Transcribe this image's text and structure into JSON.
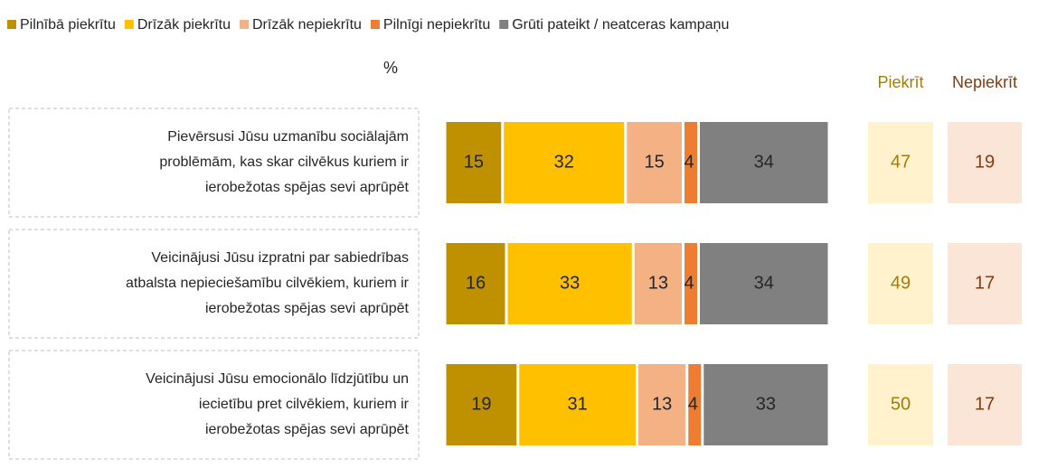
{
  "chart_data": {
    "type": "stacked-bar-horizontal",
    "unit_label": "%",
    "categories": [
      [
        "Pievērsusi Jūsu uzmanību sociālajām",
        "problēmām, kas skar cilvēkus kuriem ir",
        "ierobežotas spējas sevi aprūpēt"
      ],
      [
        "Veicinājusi Jūsu izpratni par sabiedrības",
        "atbalsta nepieciešamību cilvēkiem, kuriem ir",
        "ierobežotas spējas sevi aprūpēt"
      ],
      [
        "Veicinājusi Jūsu emocionālo līdzjūtību un",
        "iecietību pret cilvēkiem, kuriem ir",
        "ierobežotas spējas sevi aprūpēt"
      ]
    ],
    "series": [
      {
        "name": "Pilnībā piekrītu",
        "color": "#bf9000",
        "values": [
          15,
          16,
          19
        ]
      },
      {
        "name": "Drīzāk piekrītu",
        "color": "#ffc000",
        "values": [
          32,
          33,
          31
        ]
      },
      {
        "name": "Drīzāk nepiekrītu",
        "color": "#f4b183",
        "values": [
          15,
          13,
          13
        ]
      },
      {
        "name": "Pilnīgi nepiekrītu",
        "color": "#ed7d31",
        "values": [
          4,
          4,
          4
        ]
      },
      {
        "name": "Grūti pateikt / neatceras kampaņu",
        "color": "#808080",
        "values": [
          34,
          34,
          33
        ]
      }
    ],
    "xlim": [
      0,
      100
    ],
    "summary": [
      {
        "name": "Piekrīt",
        "color": "#fff2cc",
        "text_color": "#a57c0a",
        "values": [
          47,
          49,
          50
        ]
      },
      {
        "name": "Nepiekrīt",
        "color": "#fbe5d6",
        "text_color": "#843c0c",
        "values": [
          19,
          17,
          17
        ]
      }
    ]
  }
}
